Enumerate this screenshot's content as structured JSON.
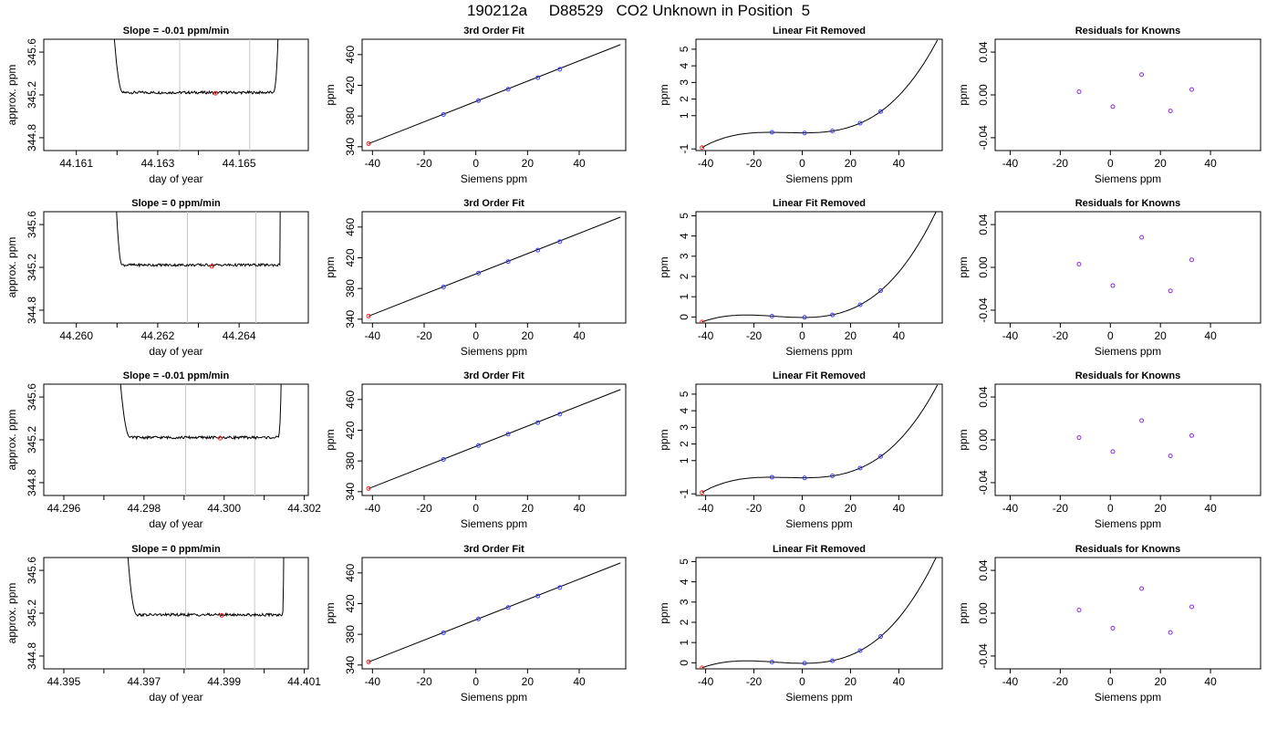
{
  "page_title": "190212a     D88529   CO2 Unknown in Position  5",
  "colors": {
    "standard_point": "#3b3bff",
    "unknown_point": "#ff2020",
    "residual_point": "#8a2be2",
    "window_line": "#c8c8c8",
    "line": "#000000"
  },
  "chart_data": [
    {
      "type": "line",
      "row": 1,
      "title": "Slope =  -0.01  ppm/min",
      "xlabel": "day of year",
      "ylabel": "approx. ppm",
      "x_ticks": [
        "44.161",
        "44.163",
        "44.165"
      ],
      "x_ticks_minor_count": 2,
      "y_ticks": [
        "344.8",
        "345.2",
        "345.6"
      ],
      "xlim": [
        44.1602,
        44.1667
      ],
      "ylim": [
        344.68,
        345.72
      ],
      "window_lines_x": [
        44.16354,
        44.16526
      ],
      "marker": {
        "x": 44.16442,
        "y": 345.215
      },
      "trace": {
        "start": 44.16186,
        "stable_from": 44.16214,
        "stable_to": 44.16582,
        "end": 44.166,
        "level": 345.222
      }
    },
    {
      "type": "line",
      "row": 1,
      "title": "3rd Order Fit",
      "xlabel": "Siemens ppm",
      "ylabel": "ppm",
      "x_ticks": [
        "-40",
        "-20",
        "0",
        "20",
        "40"
      ],
      "y_ticks": [
        "340",
        "380",
        "420",
        "460"
      ],
      "xlim": [
        -44,
        58
      ],
      "ylim": [
        335,
        480
      ],
      "fit_line": [
        [
          -41.5,
          344
        ],
        [
          56,
          473
        ]
      ],
      "standards": [
        [
          -12.5,
          382
        ],
        [
          1,
          400
        ],
        [
          12.5,
          415
        ],
        [
          24,
          430
        ],
        [
          32.5,
          441
        ]
      ],
      "unknown": [
        -41.5,
        344
      ]
    },
    {
      "type": "line",
      "row": 1,
      "title": "Linear Fit Removed",
      "xlabel": "Siemens ppm",
      "ylabel": "ppm",
      "x_ticks": [
        "-40",
        "-20",
        "0",
        "20",
        "40"
      ],
      "y_ticks": [
        "-1",
        "1",
        "2",
        "3",
        "4",
        "5"
      ],
      "xlim": [
        -44,
        58
      ],
      "ylim": [
        -1.1,
        5.6
      ],
      "curve": {
        "center": 0,
        "c": 0.04,
        "k": 0.1
      },
      "standards": [
        [
          -12.5,
          0.0
        ],
        [
          1,
          -0.04
        ],
        [
          12.5,
          0.08
        ],
        [
          24,
          0.55
        ],
        [
          32.5,
          1.25
        ]
      ],
      "unknown": [
        -41.5,
        -0.92
      ]
    },
    {
      "type": "scatter",
      "row": 1,
      "title": "Residuals for Knowns",
      "xlabel": "Siemens ppm",
      "ylabel": "ppm",
      "x_ticks": [
        "-40",
        "-20",
        "0",
        "20",
        "40"
      ],
      "y_ticks": [
        "-0.04",
        "0.00",
        "0.04"
      ],
      "xlim": [
        -46,
        60
      ],
      "ylim": [
        -0.052,
        0.052
      ],
      "points": [
        [
          -12.5,
          0.003
        ],
        [
          1,
          -0.011
        ],
        [
          12.5,
          0.019
        ],
        [
          24,
          -0.015
        ],
        [
          32.5,
          0.005
        ]
      ]
    },
    {
      "type": "line",
      "row": 2,
      "title": "Slope =  0  ppm/min",
      "xlabel": "day of year",
      "ylabel": "approx. ppm",
      "x_ticks": [
        "44.260",
        "44.262",
        "44.264"
      ],
      "x_ticks_minor_count": 2,
      "y_ticks": [
        "344.8",
        "345.2",
        "345.6"
      ],
      "xlim": [
        44.2592,
        44.2657
      ],
      "ylim": [
        344.68,
        345.72
      ],
      "window_lines_x": [
        44.26273,
        44.26441
      ],
      "marker": {
        "x": 44.26333,
        "y": 345.21
      },
      "trace": {
        "start": 44.26094,
        "stable_from": 44.26112,
        "stable_to": 44.265,
        "end": 44.26502,
        "level": 345.222
      }
    },
    {
      "type": "line",
      "row": 2,
      "title": "3rd Order Fit",
      "xlabel": "Siemens ppm",
      "ylabel": "ppm",
      "x_ticks": [
        "-40",
        "-20",
        "0",
        "20",
        "40"
      ],
      "y_ticks": [
        "340",
        "380",
        "420",
        "460"
      ],
      "xlim": [
        -44,
        58
      ],
      "ylim": [
        335,
        480
      ],
      "fit_line": [
        [
          -41.5,
          344
        ],
        [
          56,
          473
        ]
      ],
      "standards": [
        [
          -12.5,
          382
        ],
        [
          1,
          400
        ],
        [
          12.5,
          415
        ],
        [
          24,
          430
        ],
        [
          32.5,
          441
        ]
      ],
      "unknown": [
        -41.5,
        344
      ]
    },
    {
      "type": "line",
      "row": 2,
      "title": "Linear Fit Removed",
      "xlabel": "Siemens ppm",
      "ylabel": "ppm",
      "x_ticks": [
        "-40",
        "-20",
        "0",
        "20",
        "40"
      ],
      "y_ticks": [
        "0",
        "1",
        "2",
        "3",
        "4",
        "5"
      ],
      "xlim": [
        -44,
        58
      ],
      "ylim": [
        -0.3,
        5.2
      ],
      "curve": {
        "center": 0,
        "c": 0.04,
        "k": 0.1
      },
      "standards": [
        [
          -12.5,
          0.04
        ],
        [
          1,
          -0.02
        ],
        [
          12.5,
          0.1
        ],
        [
          24,
          0.6
        ],
        [
          32.5,
          1.3
        ]
      ],
      "unknown": [
        -41.5,
        -0.25
      ]
    },
    {
      "type": "scatter",
      "row": 2,
      "title": "Residuals for Knowns",
      "xlabel": "Siemens ppm",
      "ylabel": "ppm",
      "x_ticks": [
        "-40",
        "-20",
        "0",
        "20",
        "40"
      ],
      "y_ticks": [
        "-0.04",
        "0.00",
        "0.04"
      ],
      "xlim": [
        -46,
        60
      ],
      "ylim": [
        -0.052,
        0.052
      ],
      "points": [
        [
          -12.5,
          0.003
        ],
        [
          1,
          -0.017
        ],
        [
          12.5,
          0.028
        ],
        [
          24,
          -0.022
        ],
        [
          32.5,
          0.007
        ]
      ]
    },
    {
      "type": "line",
      "row": 3,
      "title": "Slope =  -0.01  ppm/min",
      "xlabel": "day of year",
      "ylabel": "approx. ppm",
      "x_ticks": [
        "44.296",
        "44.298",
        "44.300",
        "44.302"
      ],
      "x_ticks_minor_count": 3,
      "y_ticks": [
        "344.8",
        "345.2",
        "345.6"
      ],
      "xlim": [
        44.2955,
        44.3021
      ],
      "ylim": [
        344.68,
        345.72
      ],
      "window_lines_x": [
        44.29904,
        44.30077
      ],
      "marker": {
        "x": 44.2999,
        "y": 345.215
      },
      "trace": {
        "start": 44.29733,
        "stable_from": 44.29765,
        "stable_to": 44.30134,
        "end": 44.30145,
        "level": 345.222
      }
    },
    {
      "type": "line",
      "row": 3,
      "title": "3rd Order Fit",
      "xlabel": "Siemens ppm",
      "ylabel": "ppm",
      "x_ticks": [
        "-40",
        "-20",
        "0",
        "20",
        "40"
      ],
      "y_ticks": [
        "340",
        "380",
        "420",
        "460"
      ],
      "xlim": [
        -44,
        58
      ],
      "ylim": [
        335,
        480
      ],
      "fit_line": [
        [
          -41.5,
          344
        ],
        [
          56,
          473
        ]
      ],
      "standards": [
        [
          -12.5,
          382
        ],
        [
          1,
          400
        ],
        [
          12.5,
          415
        ],
        [
          24,
          430
        ],
        [
          32.5,
          441
        ]
      ],
      "unknown": [
        -41.5,
        344
      ]
    },
    {
      "type": "line",
      "row": 3,
      "title": "Linear Fit Removed",
      "xlabel": "Siemens ppm",
      "ylabel": "ppm",
      "x_ticks": [
        "-40",
        "-20",
        "0",
        "20",
        "40"
      ],
      "y_ticks": [
        "-1",
        "1",
        "2",
        "3",
        "4",
        "5"
      ],
      "xlim": [
        -44,
        58
      ],
      "ylim": [
        -1.1,
        5.6
      ],
      "curve": {
        "center": 0,
        "c": 0.04,
        "k": 0.1
      },
      "standards": [
        [
          -12.5,
          0.0
        ],
        [
          1,
          -0.04
        ],
        [
          12.5,
          0.08
        ],
        [
          24,
          0.55
        ],
        [
          32.5,
          1.25
        ]
      ],
      "unknown": [
        -41.5,
        -0.92
      ]
    },
    {
      "type": "scatter",
      "row": 3,
      "title": "Residuals for Knowns",
      "xlabel": "Siemens ppm",
      "ylabel": "ppm",
      "x_ticks": [
        "-40",
        "-20",
        "0",
        "20",
        "40"
      ],
      "y_ticks": [
        "-0.04",
        "0.00",
        "0.04"
      ],
      "xlim": [
        -46,
        60
      ],
      "ylim": [
        -0.052,
        0.052
      ],
      "points": [
        [
          -12.5,
          0.002
        ],
        [
          1,
          -0.011
        ],
        [
          12.5,
          0.018
        ],
        [
          24,
          -0.015
        ],
        [
          32.5,
          0.004
        ]
      ]
    },
    {
      "type": "line",
      "row": 4,
      "title": "Slope =  0  ppm/min",
      "xlabel": "day of year",
      "ylabel": "approx. ppm",
      "x_ticks": [
        "44.395",
        "44.397",
        "44.399",
        "44.401"
      ],
      "x_ticks_minor_count": 3,
      "y_ticks": [
        "344.8",
        "345.2",
        "345.6"
      ],
      "xlim": [
        44.3945,
        44.4011
      ],
      "ylim": [
        344.68,
        345.72
      ],
      "window_lines_x": [
        44.39804,
        44.39976
      ],
      "marker": {
        "x": 44.39894,
        "y": 345.18
      },
      "trace": {
        "start": 44.39653,
        "stable_from": 44.39682,
        "stable_to": 44.40045,
        "end": 44.4005,
        "level": 345.185
      }
    },
    {
      "type": "line",
      "row": 4,
      "title": "3rd Order Fit",
      "xlabel": "Siemens ppm",
      "ylabel": "ppm",
      "x_ticks": [
        "-40",
        "-20",
        "0",
        "20",
        "40"
      ],
      "y_ticks": [
        "340",
        "380",
        "420",
        "460"
      ],
      "xlim": [
        -44,
        58
      ],
      "ylim": [
        335,
        480
      ],
      "fit_line": [
        [
          -41.5,
          344
        ],
        [
          56,
          473
        ]
      ],
      "standards": [
        [
          -12.5,
          382
        ],
        [
          1,
          400
        ],
        [
          12.5,
          415
        ],
        [
          24,
          430
        ],
        [
          32.5,
          441
        ]
      ],
      "unknown": [
        -41.5,
        344
      ]
    },
    {
      "type": "line",
      "row": 4,
      "title": "Linear Fit Removed",
      "xlabel": "Siemens ppm",
      "ylabel": "ppm",
      "x_ticks": [
        "-40",
        "-20",
        "0",
        "20",
        "40"
      ],
      "y_ticks": [
        "0",
        "1",
        "2",
        "3",
        "4",
        "5"
      ],
      "xlim": [
        -44,
        58
      ],
      "ylim": [
        -0.3,
        5.2
      ],
      "curve": {
        "center": 0,
        "c": 0.04,
        "k": 0.1
      },
      "standards": [
        [
          -12.5,
          0.04
        ],
        [
          1,
          -0.02
        ],
        [
          12.5,
          0.1
        ],
        [
          24,
          0.6
        ],
        [
          32.5,
          1.3
        ]
      ],
      "unknown": [
        -41.5,
        -0.25
      ]
    },
    {
      "type": "scatter",
      "row": 4,
      "title": "Residuals for Knowns",
      "xlabel": "Siemens ppm",
      "ylabel": "ppm",
      "x_ticks": [
        "-40",
        "-20",
        "0",
        "20",
        "40"
      ],
      "y_ticks": [
        "-0.04",
        "0.00",
        "0.04"
      ],
      "xlim": [
        -46,
        60
      ],
      "ylim": [
        -0.052,
        0.052
      ],
      "points": [
        [
          -12.5,
          0.003
        ],
        [
          1,
          -0.014
        ],
        [
          12.5,
          0.023
        ],
        [
          24,
          -0.018
        ],
        [
          32.5,
          0.006
        ]
      ]
    }
  ]
}
